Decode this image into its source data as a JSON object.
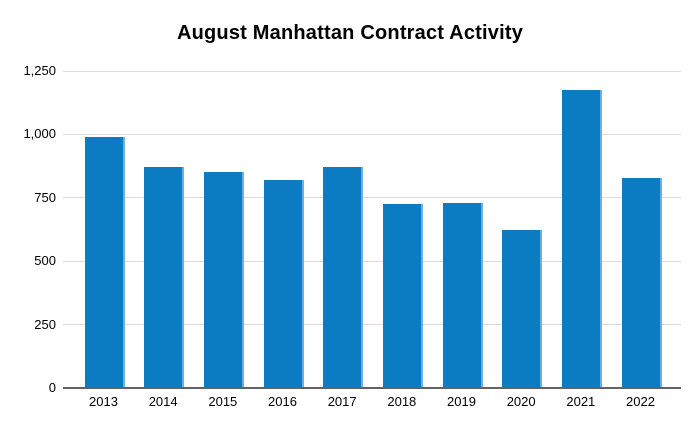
{
  "title": "August Manhattan Contract Activity",
  "chart_data": {
    "type": "bar",
    "title": "August Manhattan Contract Activity",
    "categories": [
      "2013",
      "2014",
      "2015",
      "2016",
      "2017",
      "2018",
      "2019",
      "2020",
      "2021",
      "2022"
    ],
    "values": [
      990,
      870,
      850,
      820,
      870,
      725,
      730,
      625,
      1175,
      830
    ],
    "xlabel": "",
    "ylabel": "",
    "ylim": [
      0,
      1250
    ],
    "ytick_step": 250,
    "ytick_labels": [
      "0",
      "250",
      "500",
      "750",
      "1,000",
      "1,250"
    ],
    "grid": true,
    "legend": "none",
    "colors": {
      "bar_fill": "#0b7cc1",
      "bar_right_edge": "#6faedc",
      "gridline": "#dcdcdc",
      "axis_line": "#636363",
      "label_text": "#000000",
      "title_text": "#000000",
      "background": "#ffffff"
    }
  }
}
